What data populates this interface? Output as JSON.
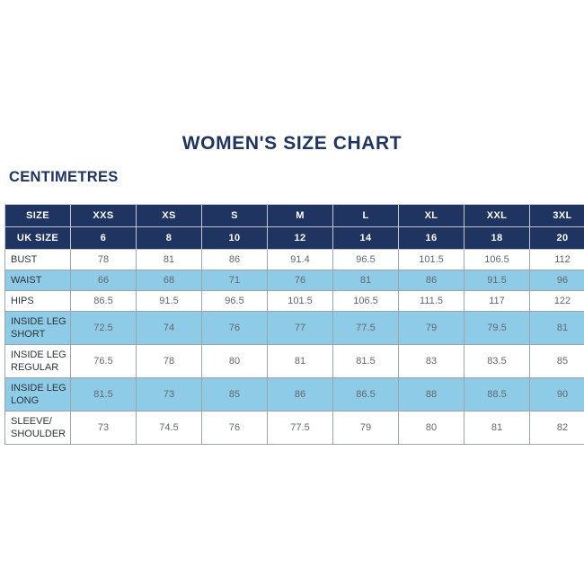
{
  "page": {
    "title": "WOMEN'S SIZE CHART",
    "units_label": "CENTIMETRES"
  },
  "colors": {
    "navy": "#1f3460",
    "light_blue": "#8ecbe7",
    "border_gray": "#9ea3a9",
    "label_text": "#2f343a",
    "value_text": "#63686e"
  },
  "chart_data": {
    "type": "table",
    "header_label": "SIZE",
    "size_labels": [
      "XXS",
      "XS",
      "S",
      "M",
      "L",
      "XL",
      "XXL",
      "3XL"
    ],
    "uk_size_row": {
      "label": "UK SIZE",
      "values": [
        "6",
        "8",
        "10",
        "12",
        "14",
        "16",
        "18",
        "20"
      ]
    },
    "rows": [
      {
        "label": "BUST",
        "values": [
          "78",
          "81",
          "86",
          "91.4",
          "96.5",
          "101.5",
          "106.5",
          "112"
        ]
      },
      {
        "label": "WAIST",
        "values": [
          "66",
          "68",
          "71",
          "76",
          "81",
          "86",
          "91.5",
          "96"
        ]
      },
      {
        "label": "HIPS",
        "values": [
          "86.5",
          "91.5",
          "96.5",
          "101.5",
          "106.5",
          "111.5",
          "117",
          "122"
        ]
      },
      {
        "label": "INSIDE LEG\nSHORT",
        "values": [
          "72.5",
          "74",
          "76",
          "77",
          "77.5",
          "79",
          "79.5",
          "81"
        ]
      },
      {
        "label": "INSIDE LEG\nREGULAR",
        "values": [
          "76.5",
          "78",
          "80",
          "81",
          "81.5",
          "83",
          "83.5",
          "85"
        ]
      },
      {
        "label": "INSIDE LEG\nLONG",
        "values": [
          "81.5",
          "73",
          "85",
          "86",
          "86.5",
          "88",
          "88.5",
          "90"
        ]
      },
      {
        "label": "SLEEVE/\nSHOULDER",
        "values": [
          "73",
          "74.5",
          "76",
          "77.5",
          "79",
          "80",
          "81",
          "82"
        ]
      }
    ]
  }
}
